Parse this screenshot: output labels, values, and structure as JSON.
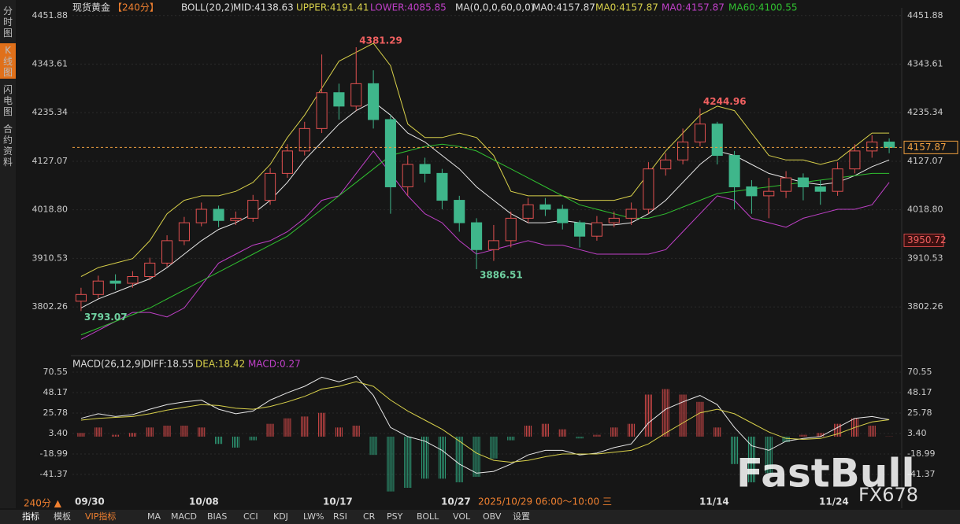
{
  "header": {
    "symbol": "现货黄金",
    "period": "【240分】",
    "boll": "BOLL(20,2)",
    "mid": "MID:4138.63",
    "upper": "UPPER:4191.41",
    "lower": "LOWER:4085.85",
    "ma": "MA(0,0,0,60,0,0)",
    "ma0_a": "MA0:4157.87",
    "ma0_b": "MA0:4157.87",
    "ma0_c": "MA0:4157.87",
    "ma60": "MA60:4100.55"
  },
  "macd_header": {
    "name": "MACD(26,12,9)",
    "diff": "DIFF:18.55",
    "dea": "DEA:18.42",
    "macd": "MACD:0.27"
  },
  "sidebar": [
    "分时图",
    "K线图",
    "闪电图",
    "合约资料"
  ],
  "footer": {
    "period": "240分 ▲",
    "dates": [
      "09/30",
      "10/08",
      "10/17",
      "10/27",
      "11/14",
      "11/24"
    ],
    "crosshair": "2025/10/29 06:00～10:00 三"
  },
  "toolbar": [
    "指标",
    "模板",
    "VIP指标",
    "MA",
    "MACD",
    "BIAS",
    "CCI",
    "KDJ",
    "LW%",
    "RSI",
    "CR",
    "PSY",
    "BOLL",
    "VOL",
    "OBV",
    "设置"
  ],
  "watermark": {
    "brand": "FastBull",
    "sub": "FX678"
  },
  "chart": {
    "ylim": [
      3706,
      4469
    ],
    "yticks": [
      4451.88,
      4343.61,
      4235.34,
      4127.07,
      {
        "value": 4018.8,
        "label": "4018.80"
      },
      3910.53,
      3802.26
    ],
    "marker_price": 3950.72,
    "candles": [
      [
        3815,
        3845,
        3793.07,
        3830
      ],
      [
        3830,
        3872,
        3822,
        3860
      ],
      [
        3860,
        3875,
        3840,
        3855
      ],
      [
        3855,
        3882,
        3845,
        3870
      ],
      [
        3870,
        3912,
        3862,
        3900
      ],
      [
        3900,
        3962,
        3892,
        3950
      ],
      [
        3950,
        4003,
        3940,
        3990
      ],
      [
        3990,
        4035,
        3982,
        4020
      ],
      [
        4020,
        4028,
        3980,
        3995
      ],
      [
        3995,
        4015,
        3985,
        4000
      ],
      [
        4000,
        4052,
        3992,
        4040
      ],
      [
        4040,
        4112,
        4030,
        4100
      ],
      [
        4100,
        4165,
        4090,
        4150
      ],
      [
        4150,
        4215,
        4140,
        4200
      ],
      [
        4200,
        4365,
        4190,
        4280
      ],
      [
        4280,
        4300,
        4220,
        4250
      ],
      [
        4250,
        4381.29,
        4240,
        4300
      ],
      [
        4300,
        4330,
        4200,
        4220
      ],
      [
        4220,
        4230,
        4010,
        4070
      ],
      [
        4070,
        4140,
        4050,
        4120
      ],
      [
        4120,
        4135,
        4080,
        4100
      ],
      [
        4100,
        4110,
        4020,
        4040
      ],
      [
        4040,
        4050,
        3970,
        3990
      ],
      [
        3990,
        4000,
        3886.51,
        3930
      ],
      [
        3930,
        3985,
        3905,
        3950
      ],
      [
        3950,
        4015,
        3935,
        4000
      ],
      [
        4000,
        4045,
        3990,
        4030
      ],
      [
        4030,
        4045,
        4005,
        4020
      ],
      [
        4020,
        4030,
        3975,
        3990
      ],
      [
        3990,
        3995,
        3935,
        3960
      ],
      [
        3960,
        4005,
        3950,
        3990
      ],
      [
        3990,
        4015,
        3980,
        4000
      ],
      [
        4000,
        4035,
        3985,
        4020
      ],
      [
        4020,
        4125,
        4010,
        4110
      ],
      [
        4110,
        4145,
        4095,
        4130
      ],
      [
        4130,
        4200,
        4120,
        4170
      ],
      [
        4170,
        4244.96,
        4160,
        4210
      ],
      [
        4210,
        4215,
        4120,
        4140
      ],
      [
        4140,
        4150,
        4020,
        4070
      ],
      [
        4070,
        4085,
        4010,
        4050
      ],
      [
        4050,
        4090,
        4000,
        4060
      ],
      [
        4060,
        4105,
        4045,
        4090
      ],
      [
        4090,
        4100,
        4040,
        4070
      ],
      [
        4070,
        4085,
        4030,
        4060
      ],
      [
        4060,
        4125,
        4050,
        4110
      ],
      [
        4110,
        4165,
        4100,
        4150
      ],
      [
        4150,
        4185,
        4135,
        4170
      ],
      [
        4170,
        4178,
        4145,
        4157.87
      ]
    ],
    "lines": [
      {
        "color": "#d8d04a",
        "values": [
          3870,
          3890,
          3900,
          3910,
          3950,
          4010,
          4040,
          4050,
          4050,
          4060,
          4080,
          4120,
          4180,
          4230,
          4290,
          4350,
          4370,
          4390,
          4340,
          4210,
          4180,
          4180,
          4190,
          4180,
          4140,
          4060,
          4050,
          4050,
          4050,
          4040,
          4040,
          4040,
          4050,
          4100,
          4150,
          4190,
          4230,
          4250,
          4240,
          4190,
          4140,
          4130,
          4130,
          4120,
          4130,
          4160,
          4190,
          4190
        ]
      },
      {
        "color": "#c040c8",
        "values": [
          3730,
          3750,
          3770,
          3790,
          3790,
          3780,
          3800,
          3850,
          3900,
          3920,
          3940,
          3950,
          3970,
          4000,
          4040,
          4050,
          4100,
          4150,
          4100,
          4050,
          4010,
          3990,
          3950,
          3920,
          3930,
          3940,
          3950,
          3940,
          3940,
          3930,
          3920,
          3920,
          3920,
          3920,
          3930,
          3970,
          4010,
          4050,
          4040,
          4000,
          3990,
          3980,
          4000,
          4010,
          4020,
          4020,
          4030,
          4080
        ]
      },
      {
        "color": "#e8e8e8",
        "values": [
          3800,
          3820,
          3835,
          3850,
          3865,
          3890,
          3920,
          3950,
          3975,
          3990,
          4010,
          4040,
          4080,
          4130,
          4170,
          4210,
          4240,
          4260,
          4230,
          4190,
          4170,
          4140,
          4110,
          4070,
          4040,
          4010,
          3990,
          3990,
          3995,
          3990,
          3985,
          3985,
          3990,
          4010,
          4040,
          4080,
          4120,
          4150,
          4140,
          4120,
          4100,
          4090,
          4080,
          4075,
          4080,
          4095,
          4115,
          4130
        ]
      },
      {
        "color": "#30c030",
        "values": [
          3740,
          3755,
          3770,
          3785,
          3800,
          3820,
          3840,
          3860,
          3880,
          3900,
          3920,
          3940,
          3960,
          3990,
          4020,
          4050,
          4080,
          4110,
          4140,
          4150,
          4160,
          4165,
          4160,
          4150,
          4130,
          4110,
          4090,
          4070,
          4050,
          4030,
          4020,
          4010,
          4000,
          4000,
          4010,
          4025,
          4040,
          4055,
          4060,
          4065,
          4070,
          4075,
          4080,
          4085,
          4090,
          4095,
          4100,
          4100
        ]
      }
    ]
  },
  "macd": {
    "ylim": [
      -64.6,
      77.4
    ],
    "yticks": [
      70.55,
      48.17,
      25.78,
      {
        "value": 3.4,
        "label": "3.40"
      },
      -18.99,
      -41.37
    ],
    "diff": [
      20,
      25,
      22,
      24,
      30,
      35,
      38,
      40,
      30,
      25,
      28,
      40,
      48,
      55,
      65,
      60,
      66,
      45,
      10,
      0,
      -5,
      -15,
      -30,
      -40,
      -38,
      -30,
      -20,
      -15,
      -15,
      -20,
      -18,
      -12,
      -8,
      15,
      30,
      38,
      45,
      35,
      10,
      -10,
      -15,
      -5,
      -2,
      0,
      10,
      20,
      22,
      18.55
    ],
    "dea": [
      18,
      20,
      21,
      22,
      25,
      29,
      32,
      35,
      34,
      31,
      30,
      33,
      38,
      44,
      52,
      55,
      60,
      55,
      40,
      28,
      18,
      8,
      -5,
      -18,
      -26,
      -28,
      -26,
      -22,
      -19,
      -19,
      -19,
      -17,
      -15,
      -8,
      4,
      15,
      26,
      30,
      25,
      15,
      5,
      -2,
      -3,
      -2,
      3,
      10,
      16,
      18.42
    ],
    "hist": [
      4,
      10,
      2,
      4,
      10,
      12,
      12,
      10,
      -8,
      -12,
      -4,
      14,
      20,
      22,
      26,
      10,
      12,
      -20,
      -60,
      -56,
      -46,
      -46,
      -50,
      -44,
      -24,
      -4,
      12,
      14,
      8,
      -2,
      2,
      10,
      14,
      46,
      52,
      46,
      38,
      10,
      -30,
      -50,
      -40,
      -6,
      2,
      4,
      14,
      20,
      12,
      0.27
    ]
  }
}
